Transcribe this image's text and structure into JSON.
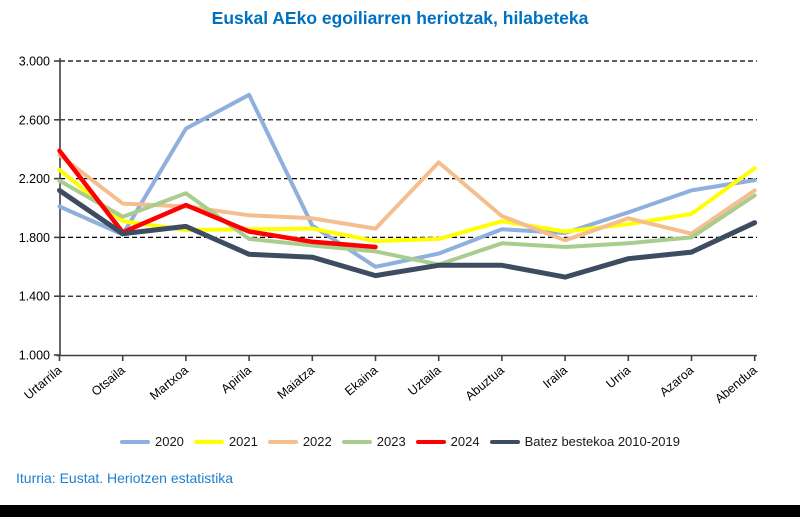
{
  "title": "Euskal AEko egoiliarren heriotzak, hilabeteka",
  "footer": "Iturria: Eustat. Heriotzen estatistika",
  "chart_data": {
    "type": "line",
    "title": "Euskal AEko egoiliarren heriotzak, hilabeteka",
    "xlabel": "",
    "ylabel": "",
    "ylim": [
      1000,
      3000
    ],
    "y_ticks": [
      {
        "value": 3000,
        "label": "3.000"
      },
      {
        "value": 2600,
        "label": "2.600"
      },
      {
        "value": 2200,
        "label": "2.200"
      },
      {
        "value": 1800,
        "label": "1.800"
      },
      {
        "value": 1400,
        "label": "1.400"
      },
      {
        "value": 1000,
        "label": "1.000"
      }
    ],
    "grid": "horizontal-dashed",
    "legend_position": "bottom",
    "categories": [
      "Urtarrila",
      "Otsaila",
      "Martxoa",
      "Apirila",
      "Maiatza",
      "Ekaina",
      "Uztaila",
      "Abuztua",
      "Iraila",
      "Urria",
      "Azaroa",
      "Abendua"
    ],
    "series": [
      {
        "name": "2020",
        "color": "#8FAFDC",
        "width": 4,
        "values": [
          2010,
          1820,
          2540,
          2770,
          1880,
          1600,
          1690,
          1855,
          1830,
          1970,
          2120,
          2190
        ]
      },
      {
        "name": "2021",
        "color": "#FFFF00",
        "width": 4,
        "values": [
          2260,
          1910,
          1850,
          1855,
          1860,
          1775,
          1790,
          1910,
          1840,
          1890,
          1960,
          2270
        ]
      },
      {
        "name": "2022",
        "color": "#F5BE8E",
        "width": 4,
        "values": [
          2360,
          2030,
          2010,
          1950,
          1930,
          1860,
          2310,
          1945,
          1780,
          1930,
          1825,
          2120
        ]
      },
      {
        "name": "2023",
        "color": "#A9CD8E",
        "width": 4,
        "values": [
          2185,
          1940,
          2100,
          1790,
          1745,
          1705,
          1615,
          1760,
          1735,
          1760,
          1800,
          2085
        ]
      },
      {
        "name": "2024",
        "color": "#FF0000",
        "width": 4.5,
        "values": [
          2390,
          1835,
          2020,
          1840,
          1770,
          1735,
          null,
          null,
          null,
          null,
          null,
          null
        ]
      },
      {
        "name": "Batez bestekoa 2010-2019",
        "color": "#3E4C61",
        "width": 5,
        "values": [
          2120,
          1825,
          1875,
          1685,
          1665,
          1540,
          1610,
          1610,
          1530,
          1655,
          1700,
          1900
        ]
      }
    ]
  }
}
